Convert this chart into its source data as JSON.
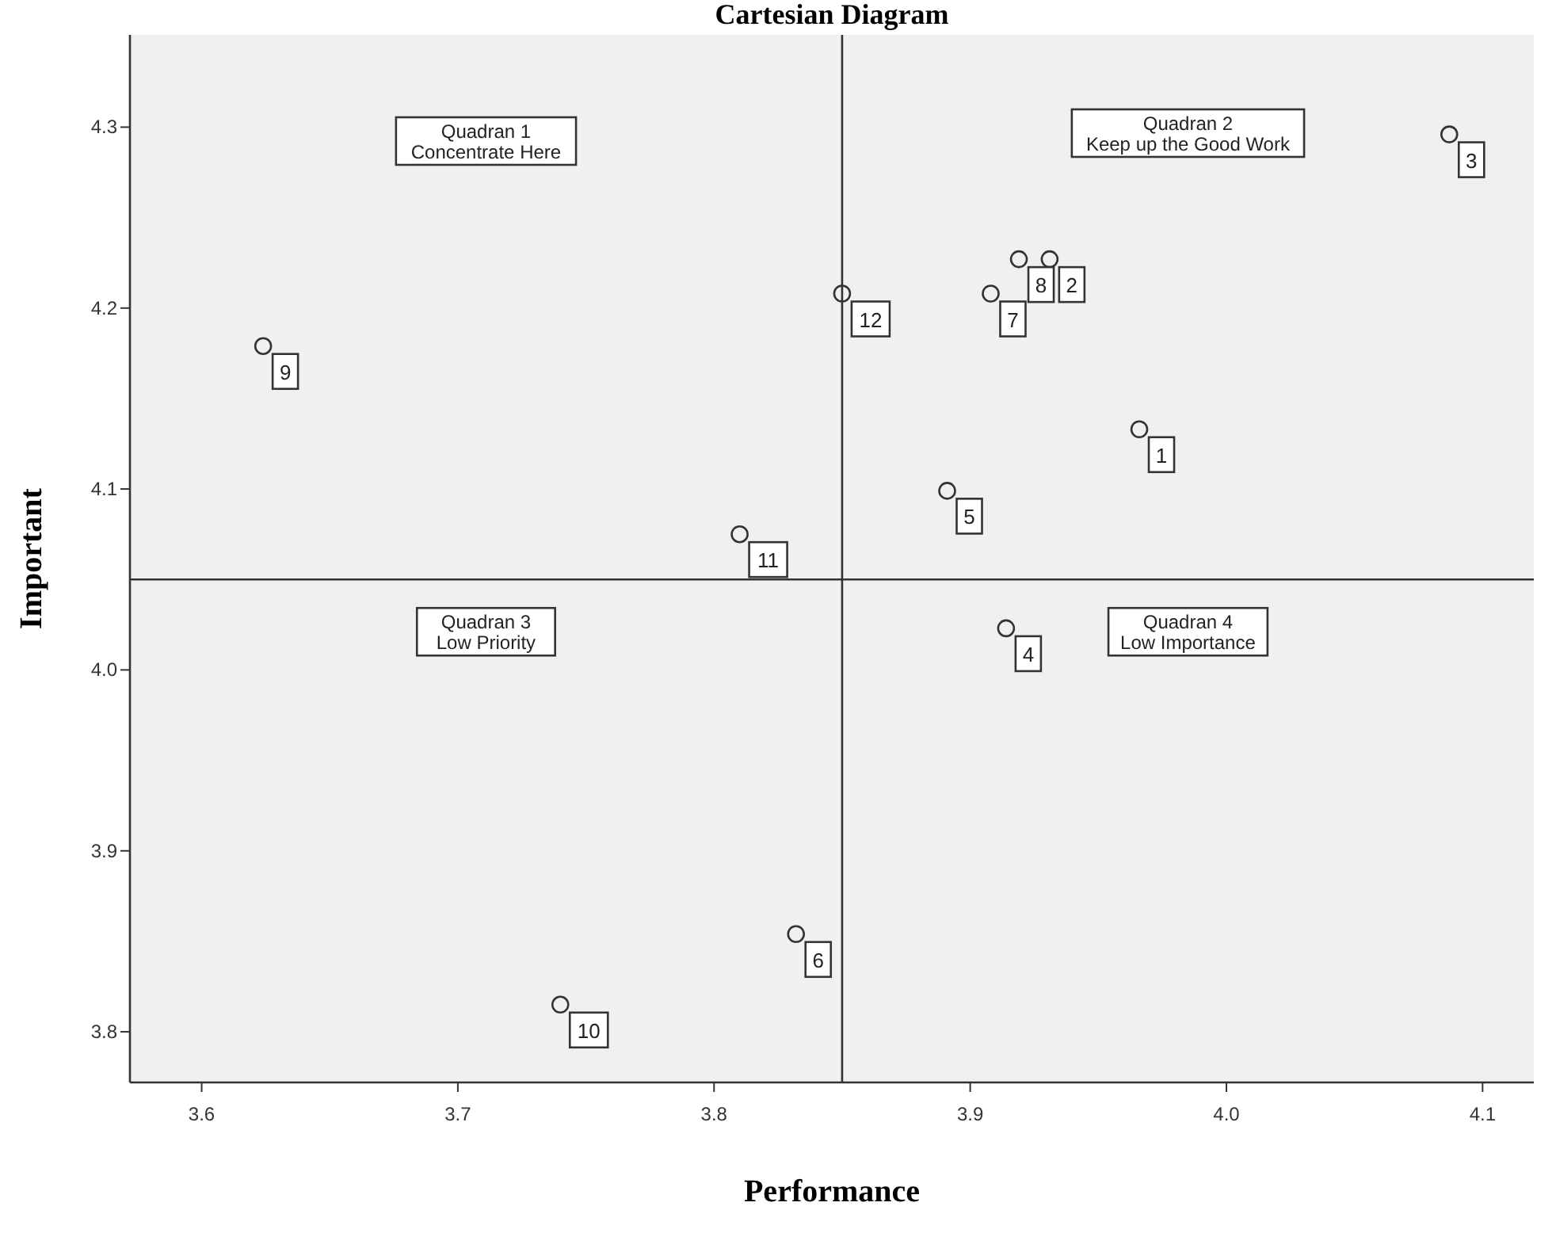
{
  "chart_data": {
    "type": "scatter",
    "title": "Cartesian Diagram",
    "xlabel": "Performance",
    "ylabel": "Important",
    "xlim": [
      3.572,
      4.12
    ],
    "ylim": [
      3.772,
      4.351
    ],
    "xticks": [
      3.6,
      3.7,
      3.8,
      3.9,
      {
        "value": 4,
        "label": "4.0"
      },
      4.1
    ],
    "yticks": [
      3.8,
      3.9,
      {
        "value": 4,
        "label": "4.0"
      },
      4.1,
      4.2,
      4.3
    ],
    "marker": "circle",
    "grid": false,
    "series": [
      {
        "color": "#333333",
        "x": [
          3.966,
          3.931,
          4.087,
          3.914,
          3.891,
          3.832,
          3.908,
          3.919,
          3.624,
          3.74,
          3.81,
          3.85
        ],
        "values": [
          4.133,
          4.227,
          4.296,
          4.023,
          4.099,
          3.854,
          4.208,
          4.227,
          4.179,
          3.815,
          4.075,
          4.208
        ]
      }
    ],
    "ref_lines": [
      {
        "axis": "x",
        "value": 3.85,
        "color": "#333333"
      },
      {
        "axis": "y",
        "value": 4.05,
        "color": "#333333"
      }
    ],
    "annotations": [
      "Quadran 1\nConcentrate Here",
      "Quadran 2\nKeep up the Good Work",
      "Quadran 3\nLow Priority",
      "Quadran 4\nLow Importance",
      {
        "text": "1",
        "x": 3.966,
        "y": 4.133
      },
      {
        "text": "2",
        "x": 3.931,
        "y": 4.227
      },
      {
        "text": "3",
        "x": 4.087,
        "y": 4.296
      },
      {
        "text": "4",
        "x": 3.914,
        "y": 4.023
      },
      {
        "text": "5",
        "x": 3.891,
        "y": 4.099
      },
      {
        "text": "6",
        "x": 3.832,
        "y": 3.854
      },
      {
        "text": "7",
        "x": 3.908,
        "y": 4.208
      },
      {
        "text": "8",
        "x": 3.919,
        "y": 4.227
      },
      {
        "text": "9",
        "x": 3.624,
        "y": 4.179
      },
      {
        "text": "10",
        "x": 3.74,
        "y": 3.815
      },
      {
        "text": "11",
        "x": 3.81,
        "y": 4.075
      },
      {
        "text": "12",
        "x": 3.85,
        "y": 4.208
      }
    ]
  }
}
